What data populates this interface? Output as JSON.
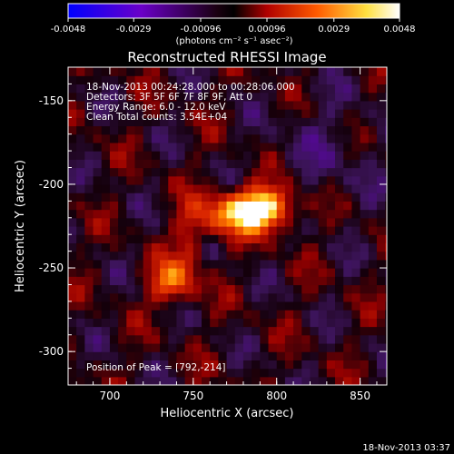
{
  "chart_data": {
    "type": "heatmap",
    "title": "Reconstructed RHESSI Image",
    "xlabel": "Heliocentric X (arcsec)",
    "ylabel": "Heliocentric Y (arcsec)",
    "xlim": [
      675,
      866
    ],
    "ylim": [
      -320,
      -130
    ],
    "xticks": [
      700,
      750,
      800,
      850
    ],
    "yticks": [
      -150,
      -200,
      -250,
      -300
    ],
    "colorbar": {
      "ticks": [
        "-0.0048",
        "-0.0029",
        "-0.00096",
        "0.00096",
        "0.0029",
        "0.0048"
      ],
      "range": [
        -0.0048,
        0.0048
      ],
      "unit_label": "(photons cm⁻² s⁻¹ asec⁻²)",
      "colors": [
        "#0000ff",
        "#7f00c8",
        "#000000",
        "#c80000",
        "#ff7f00",
        "#ffff66",
        "#ffffff"
      ]
    },
    "annotations": [
      "18-Nov-2013 00:24:28.000 to 00:28:06.000",
      "Detectors: 3F 5F 6F 7F 8F 9F, Att 0",
      "Energy Range: 6.0 - 12.0 keV",
      "Clean    Total counts: 3.54E+04"
    ],
    "peak_label": "Position of Peak = [792,-214]",
    "sources": [
      {
        "x": 792,
        "y": -214,
        "peak": 0.0048
      },
      {
        "x": 737,
        "y": -258,
        "peak": 0.003
      }
    ],
    "grid": false
  },
  "footer": {
    "timestamp": "18-Nov-2013 03:37"
  }
}
